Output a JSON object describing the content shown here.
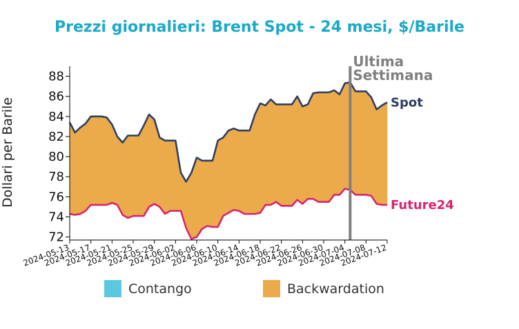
{
  "chart_data": {
    "type": "area",
    "title": "Prezzi giornalieri: Brent Spot - 24 mesi, $/Barile",
    "xlabel": "",
    "ylabel": "Dollari per Barile",
    "ylim": [
      71.7,
      89.0
    ],
    "yticks": [
      72,
      74,
      76,
      78,
      80,
      82,
      84,
      86,
      88
    ],
    "grid": false,
    "x_tick_labels": [
      "2024-05-13",
      "2024-05-17",
      "2024-05-21",
      "2024-05-25",
      "2024-05-29",
      "2024-06-02",
      "2024-06-06",
      "2024-06-10",
      "2024-06-14",
      "2024-06-18",
      "2024-06-22",
      "2024-06-26",
      "2024-06-30",
      "2024-07-04",
      "2024-07-08",
      "2024-07-12"
    ],
    "x": [
      "2024-05-13",
      "2024-05-14",
      "2024-05-15",
      "2024-05-16",
      "2024-05-17",
      "2024-05-18",
      "2024-05-19",
      "2024-05-20",
      "2024-05-21",
      "2024-05-22",
      "2024-05-23",
      "2024-05-24",
      "2024-05-25",
      "2024-05-26",
      "2024-05-27",
      "2024-05-28",
      "2024-05-29",
      "2024-05-30",
      "2024-05-31",
      "2024-06-01",
      "2024-06-02",
      "2024-06-03",
      "2024-06-04",
      "2024-06-05",
      "2024-06-06",
      "2024-06-07",
      "2024-06-08",
      "2024-06-09",
      "2024-06-10",
      "2024-06-11",
      "2024-06-12",
      "2024-06-13",
      "2024-06-14",
      "2024-06-15",
      "2024-06-16",
      "2024-06-17",
      "2024-06-18",
      "2024-06-19",
      "2024-06-20",
      "2024-06-21",
      "2024-06-22",
      "2024-06-23",
      "2024-06-24",
      "2024-06-25",
      "2024-06-26",
      "2024-06-27",
      "2024-06-28",
      "2024-06-29",
      "2024-06-30",
      "2024-07-01",
      "2024-07-02",
      "2024-07-03",
      "2024-07-04",
      "2024-07-05",
      "2024-07-06",
      "2024-07-07",
      "2024-07-08",
      "2024-07-09",
      "2024-07-10",
      "2024-07-11",
      "2024-07-12"
    ],
    "series": [
      {
        "name": "Spot",
        "color": "#2e3e63",
        "values": [
          83.4,
          82.4,
          82.9,
          83.3,
          84.0,
          84.0,
          84.0,
          83.9,
          83.2,
          82.0,
          81.4,
          82.1,
          82.1,
          82.1,
          83.1,
          84.2,
          83.7,
          81.9,
          81.6,
          81.6,
          81.6,
          78.4,
          77.5,
          78.4,
          79.9,
          79.6,
          79.6,
          79.6,
          81.6,
          81.9,
          82.6,
          82.8,
          82.6,
          82.6,
          82.6,
          84.2,
          85.3,
          85.1,
          85.7,
          85.2,
          85.2,
          85.2,
          85.2,
          86.0,
          85.0,
          85.2,
          86.3,
          86.4,
          86.4,
          86.4,
          86.6,
          86.2,
          87.3,
          87.4,
          86.5,
          86.5,
          86.5,
          85.9,
          84.7,
          85.1,
          85.4
        ]
      },
      {
        "name": "Future24",
        "color": "#d8246e",
        "values": [
          74.3,
          74.2,
          74.3,
          74.6,
          75.2,
          75.2,
          75.2,
          75.2,
          75.4,
          75.2,
          74.2,
          73.9,
          74.1,
          74.1,
          74.1,
          75.0,
          75.3,
          75.0,
          74.3,
          74.6,
          74.6,
          74.6,
          72.9,
          71.8,
          72.0,
          72.8,
          73.1,
          73.0,
          73.0,
          74.1,
          74.4,
          74.7,
          74.6,
          74.3,
          74.3,
          74.3,
          74.4,
          75.2,
          75.2,
          75.5,
          75.1,
          75.1,
          75.1,
          75.7,
          75.3,
          75.8,
          75.8,
          75.5,
          75.5,
          75.5,
          76.2,
          76.2,
          76.8,
          76.7,
          76.2,
          76.2,
          76.2,
          76.1,
          75.3,
          75.2,
          75.2
        ]
      }
    ],
    "fill_colors": {
      "Contango": "#5bc8df",
      "Backwardation": "#ebab4b"
    },
    "vertical_line": {
      "x": "2024-07-05",
      "label": "Ultima Settimana",
      "color": "#808080"
    },
    "legend": {
      "placement": "bottom",
      "entries": [
        "Contango",
        "Backwardation"
      ]
    },
    "series_labels": [
      "Spot",
      "Future24"
    ],
    "annotation_lines": [
      "Ultima",
      "Settimana"
    ]
  }
}
